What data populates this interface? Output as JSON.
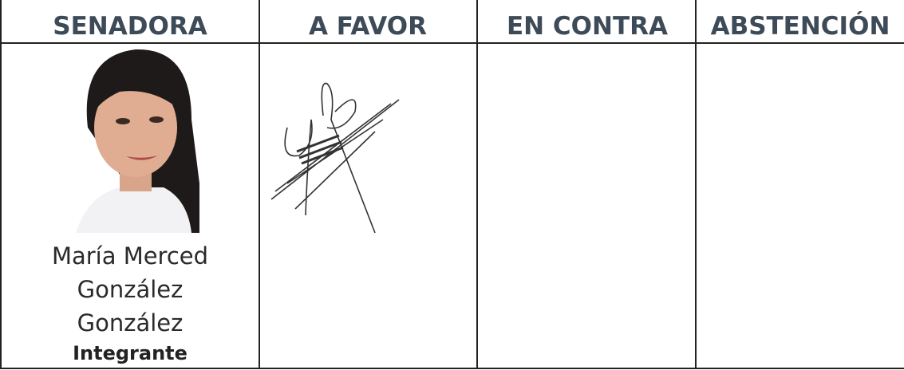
{
  "table": {
    "headers": [
      "SENADORA",
      "A FAVOR",
      "EN CONTRA",
      "ABSTENCIÓN"
    ],
    "rows": [
      {
        "name": [
          "María Merced",
          "González",
          "González"
        ],
        "role": "Integrante"
      }
    ]
  }
}
